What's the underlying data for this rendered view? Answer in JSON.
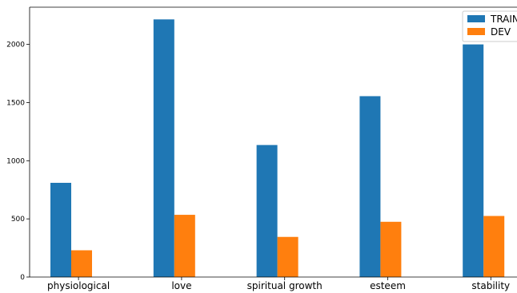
{
  "chart_data": {
    "type": "bar",
    "categories": [
      "physiological",
      "love",
      "spiritual growth",
      "esteem",
      "stability"
    ],
    "series": [
      {
        "name": "TRAIN",
        "values": [
          810,
          2215,
          1135,
          1555,
          2000
        ],
        "color": "#1f77b4"
      },
      {
        "name": "DEV",
        "values": [
          230,
          535,
          345,
          475,
          525
        ],
        "color": "#ff7f0e"
      }
    ],
    "yticks": [
      "0",
      "500",
      "1000",
      "1500",
      "2000"
    ],
    "ylim": [
      0,
      2320
    ],
    "grid": false,
    "legend_position": "top-right"
  }
}
